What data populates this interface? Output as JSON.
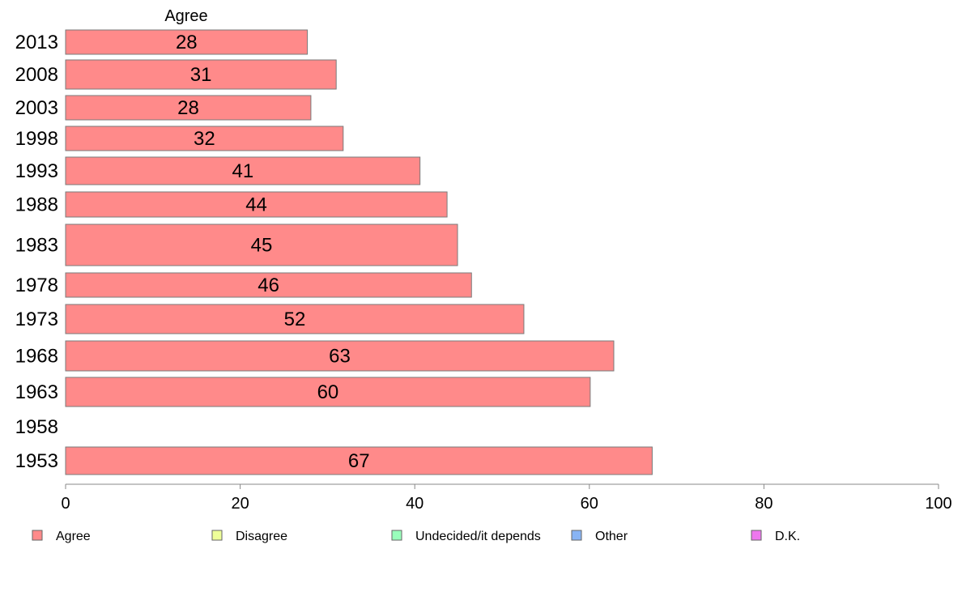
{
  "chart_data": {
    "type": "bar",
    "orientation": "horizontal",
    "series_header": "Agree",
    "categories": [
      "2013",
      "2008",
      "2003",
      "1998",
      "1993",
      "1988",
      "1983",
      "1978",
      "1973",
      "1968",
      "1963",
      "1958",
      "1953"
    ],
    "series": [
      {
        "name": "Agree",
        "color": "#ff8a8a",
        "values": [
          28,
          31,
          28,
          32,
          41,
          44,
          45,
          46,
          52,
          63,
          60,
          null,
          67
        ],
        "bar_values": [
          27.7,
          31.0,
          28.1,
          31.8,
          40.6,
          43.7,
          44.9,
          46.5,
          52.5,
          62.8,
          60.1,
          null,
          67.2
        ]
      }
    ],
    "xlim": [
      0,
      100
    ],
    "xticks": [
      "0",
      "20",
      "40",
      "60",
      "80",
      "100"
    ],
    "grid": false,
    "legend": {
      "position": "bottom",
      "items": [
        {
          "label": "Agree",
          "color": "#ff8a8a"
        },
        {
          "label": "Disagree",
          "color": "#eeff99"
        },
        {
          "label": "Undecided/it depends",
          "color": "#99ffbb"
        },
        {
          "label": "Other",
          "color": "#88b4f4"
        },
        {
          "label": "D.K.",
          "color": "#ee77ee"
        }
      ]
    }
  }
}
